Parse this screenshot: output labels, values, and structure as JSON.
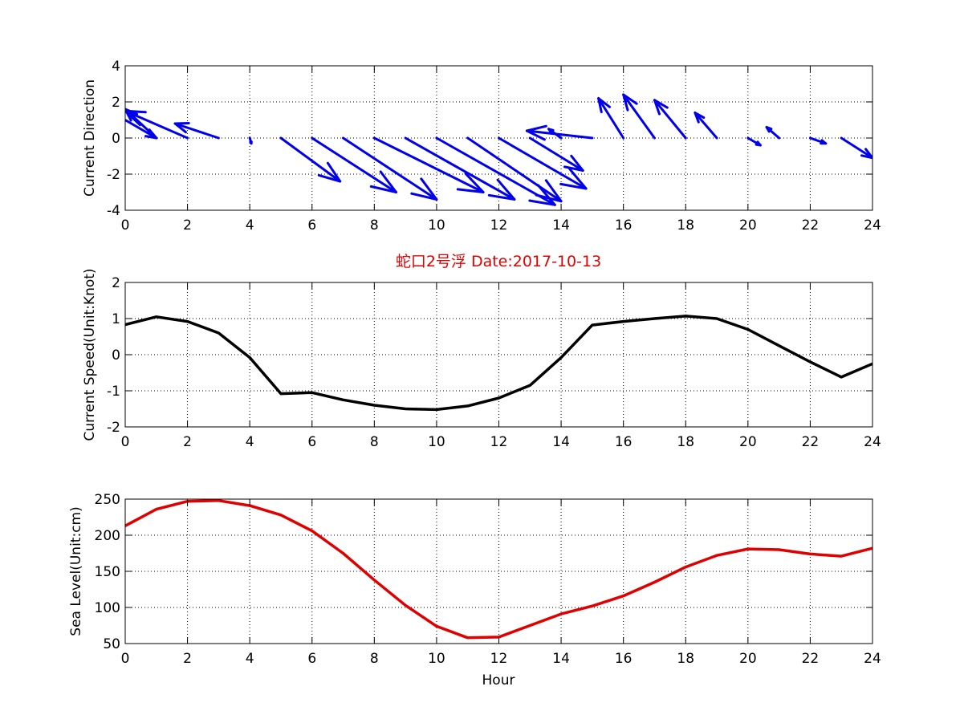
{
  "title": "蛇口2号浮   Date:2017-10-13",
  "title_color": "#e00000",
  "chart_data": [
    {
      "type": "quiver",
      "ylabel": "Current Direction",
      "xlim": [
        0,
        24
      ],
      "ylim": [
        -4,
        4
      ],
      "xticks": [
        0,
        2,
        4,
        6,
        8,
        10,
        12,
        14,
        16,
        18,
        20,
        22,
        24
      ],
      "yticks": [
        -4,
        -2,
        0,
        2,
        4
      ],
      "grid": true,
      "color": "#0000ee",
      "vectors": [
        {
          "x": 0,
          "y": 1.0,
          "u": 1.0,
          "v": -1.0
        },
        {
          "x": 1,
          "y": 0,
          "u": -1.0,
          "v": 1.6
        },
        {
          "x": 2,
          "y": 0,
          "u": -2.0,
          "v": 1.5
        },
        {
          "x": 3,
          "y": 0,
          "u": -1.4,
          "v": 0.8
        },
        {
          "x": 4,
          "y": 0,
          "u": 0.05,
          "v": -0.3
        },
        {
          "x": 5,
          "y": 0,
          "u": 1.9,
          "v": -2.4
        },
        {
          "x": 6,
          "y": 0,
          "u": 2.7,
          "v": -3.0
        },
        {
          "x": 7,
          "y": 0,
          "u": 3.0,
          "v": -3.4
        },
        {
          "x": 8,
          "y": 0,
          "u": 3.5,
          "v": -3.0
        },
        {
          "x": 9,
          "y": 0,
          "u": 3.5,
          "v": -3.4
        },
        {
          "x": 10,
          "y": 0,
          "u": 3.8,
          "v": -3.7
        },
        {
          "x": 11,
          "y": 0,
          "u": 3.0,
          "v": -3.5
        },
        {
          "x": 12,
          "y": 0,
          "u": 2.8,
          "v": -2.8
        },
        {
          "x": 13,
          "y": 0,
          "u": 1.7,
          "v": -1.8
        },
        {
          "x": 14,
          "y": 0,
          "u": -0.4,
          "v": 0.5
        },
        {
          "x": 15,
          "y": 0,
          "u": -2.1,
          "v": 0.4
        },
        {
          "x": 16,
          "y": 0,
          "u": -0.8,
          "v": 2.2
        },
        {
          "x": 17,
          "y": 0,
          "u": -1.0,
          "v": 2.4
        },
        {
          "x": 18,
          "y": 0,
          "u": -1.0,
          "v": 2.1
        },
        {
          "x": 19,
          "y": 0,
          "u": -0.7,
          "v": 1.4
        },
        {
          "x": 20,
          "y": 0,
          "u": 0.4,
          "v": -0.4
        },
        {
          "x": 21,
          "y": 0,
          "u": -0.4,
          "v": 0.6
        },
        {
          "x": 22,
          "y": 0,
          "u": 0.5,
          "v": -0.3
        },
        {
          "x": 23,
          "y": 0,
          "u": 1.0,
          "v": -1.1
        }
      ]
    },
    {
      "type": "line",
      "ylabel": "Current Speed(Unit:Knot)",
      "xlim": [
        0,
        24
      ],
      "ylim": [
        -2,
        2
      ],
      "xticks": [
        0,
        2,
        4,
        6,
        8,
        10,
        12,
        14,
        16,
        18,
        20,
        22,
        24
      ],
      "yticks": [
        -2,
        -1,
        0,
        1,
        2
      ],
      "grid": true,
      "color": "#000000",
      "x": [
        0,
        1,
        2,
        3,
        4,
        5,
        6,
        7,
        8,
        9,
        10,
        11,
        12,
        13,
        14,
        15,
        16,
        17,
        18,
        19,
        20,
        21,
        22,
        23,
        24
      ],
      "y": [
        0.83,
        1.05,
        0.92,
        0.6,
        -0.08,
        -1.08,
        -1.05,
        -1.25,
        -1.4,
        -1.5,
        -1.52,
        -1.42,
        -1.2,
        -0.85,
        -0.08,
        0.82,
        0.92,
        1.0,
        1.07,
        1.0,
        0.7,
        0.25,
        -0.2,
        -0.62,
        -0.25
      ]
    },
    {
      "type": "line",
      "xlabel": "Hour",
      "ylabel": "Sea Level(Unit:cm)",
      "xlim": [
        0,
        24
      ],
      "ylim": [
        50,
        250
      ],
      "xticks": [
        0,
        2,
        4,
        6,
        8,
        10,
        12,
        14,
        16,
        18,
        20,
        22,
        24
      ],
      "yticks": [
        50,
        100,
        150,
        200,
        250
      ],
      "grid": true,
      "color": "#e00000",
      "x": [
        0,
        1,
        2,
        3,
        4,
        5,
        6,
        7,
        8,
        9,
        10,
        11,
        12,
        13,
        14,
        15,
        16,
        17,
        18,
        19,
        20,
        21,
        22,
        23,
        24
      ],
      "y": [
        213,
        236,
        247,
        248,
        241,
        228,
        206,
        175,
        138,
        103,
        74,
        58,
        59,
        75,
        91,
        102,
        116,
        135,
        156,
        172,
        181,
        180,
        174,
        171,
        182
      ]
    }
  ]
}
